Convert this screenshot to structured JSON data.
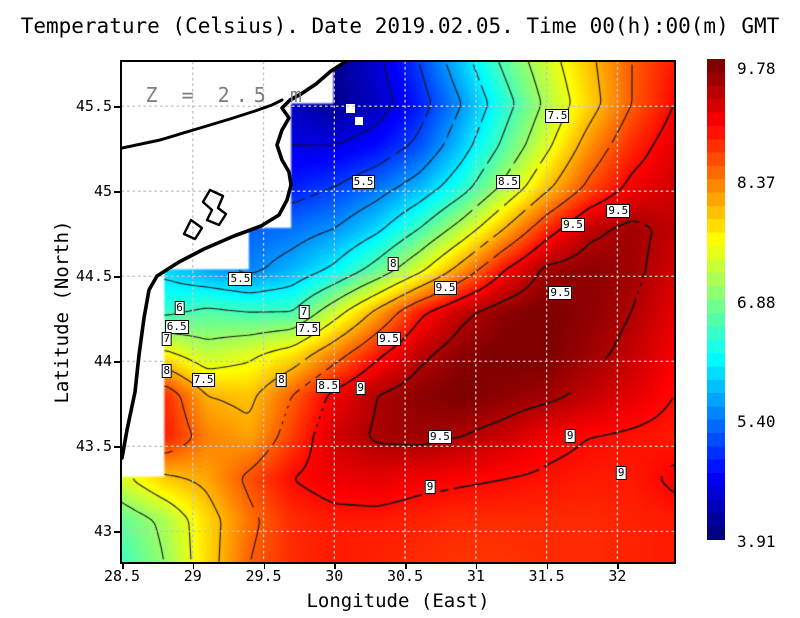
{
  "title": "Temperature (Celsius). Date 2019.02.05. Time 00(h):00(m) GMT",
  "annotation": "Z = 2.5 m",
  "axes": {
    "x_label": "Longitude (East)",
    "y_label": "Latitude (North)",
    "x_ticks": [
      "28.5",
      "29",
      "29.5",
      "30",
      "30.5",
      "31",
      "31.5",
      "32"
    ],
    "y_ticks": [
      "45.5",
      "45",
      "44.5",
      "44",
      "43.5",
      "43"
    ],
    "grid": true
  },
  "colorbar": {
    "labels": [
      "9.78",
      "8.37",
      "6.88",
      "5.40",
      "3.91"
    ],
    "min": 3.91,
    "max": 9.78
  },
  "chart_data": {
    "type": "heatmap",
    "title": "Temperature (Celsius). Date 2019.02.05. Time 00(h):00(m) GMT",
    "xlabel": "Longitude (East)",
    "ylabel": "Latitude (North)",
    "xlim": [
      28.5,
      32.4
    ],
    "ylim": [
      42.82,
      45.76
    ],
    "value_range": [
      3.91,
      9.78
    ],
    "lon": [
      28.5,
      28.8,
      29.1,
      29.4,
      29.7,
      30.0,
      30.3,
      30.6,
      30.9,
      31.2,
      31.5,
      31.8,
      32.1,
      32.4
    ],
    "lat": [
      45.76,
      45.52,
      45.27,
      45.03,
      44.78,
      44.54,
      44.29,
      44.05,
      43.8,
      43.56,
      43.31,
      43.07,
      42.82
    ],
    "values": [
      [
        null,
        null,
        null,
        null,
        null,
        4.0,
        4.4,
        5.0,
        5.8,
        6.6,
        7.3,
        7.9,
        8.5,
        8.9
      ],
      [
        null,
        null,
        null,
        null,
        4.3,
        4.0,
        4.3,
        4.8,
        5.5,
        6.3,
        7.1,
        7.8,
        8.5,
        9.0
      ],
      [
        null,
        null,
        null,
        null,
        4.5,
        4.5,
        4.7,
        5.1,
        5.8,
        6.6,
        7.4,
        8.2,
        8.8,
        9.2
      ],
      [
        null,
        null,
        null,
        null,
        4.8,
        5.0,
        5.3,
        5.7,
        6.3,
        7.1,
        7.9,
        8.6,
        9.1,
        9.3
      ],
      [
        null,
        null,
        null,
        5.2,
        5.3,
        5.5,
        5.9,
        6.5,
        7.2,
        8.0,
        8.8,
        9.4,
        9.6,
        9.4
      ],
      [
        null,
        5.9,
        5.6,
        5.4,
        5.7,
        6.1,
        6.7,
        7.4,
        8.2,
        9.0,
        9.6,
        9.7,
        9.6,
        9.3
      ],
      [
        null,
        6.4,
        6.6,
        6.5,
        6.5,
        7.3,
        8.1,
        8.9,
        9.4,
        9.7,
        9.8,
        9.7,
        9.5,
        9.2
      ],
      [
        null,
        7.6,
        7.2,
        7.4,
        7.7,
        8.3,
        8.9,
        9.4,
        9.7,
        9.8,
        9.8,
        9.6,
        9.4,
        9.1
      ],
      [
        null,
        8.8,
        8.0,
        7.9,
        8.5,
        9.1,
        9.5,
        9.7,
        9.8,
        9.7,
        9.6,
        9.4,
        9.2,
        9.0
      ],
      [
        null,
        8.9,
        8.3,
        8.1,
        8.7,
        9.3,
        9.55,
        9.6,
        9.5,
        9.35,
        9.1,
        9.0,
        8.95,
        8.9
      ],
      [
        7.4,
        7.9,
        8.1,
        8.6,
        9.0,
        9.15,
        9.2,
        9.1,
        9.05,
        9.0,
        8.95,
        8.9,
        8.9,
        9.05
      ],
      [
        6.7,
        7.1,
        7.8,
        8.4,
        8.8,
        8.9,
        8.9,
        8.85,
        8.8,
        8.8,
        8.8,
        8.8,
        8.85,
        8.9
      ],
      [
        6.5,
        7.0,
        7.8,
        8.5,
        8.8,
        8.9,
        8.85,
        8.8,
        8.75,
        8.75,
        8.8,
        8.8,
        8.85,
        8.9
      ]
    ],
    "contour_levels": [
      4,
      4.5,
      5,
      5.5,
      6,
      6.5,
      7,
      7.5,
      8,
      8.5,
      9,
      9.5
    ],
    "contour_labels": [
      {
        "v": "5.5",
        "lon": 30.21,
        "lat": 45.05
      },
      {
        "v": "8.5",
        "lon": 31.23,
        "lat": 45.05
      },
      {
        "v": "7.5",
        "lon": 31.58,
        "lat": 45.44
      },
      {
        "v": "9.5",
        "lon": 32.01,
        "lat": 44.88
      },
      {
        "v": "9.5",
        "lon": 31.69,
        "lat": 44.8
      },
      {
        "v": "5.5",
        "lon": 29.34,
        "lat": 44.48
      },
      {
        "v": "6",
        "lon": 28.91,
        "lat": 44.31
      },
      {
        "v": "6.5",
        "lon": 28.89,
        "lat": 44.2
      },
      {
        "v": "7",
        "lon": 28.82,
        "lat": 44.13
      },
      {
        "v": "7",
        "lon": 29.79,
        "lat": 44.29
      },
      {
        "v": "7.5",
        "lon": 29.82,
        "lat": 44.19
      },
      {
        "v": "8",
        "lon": 30.42,
        "lat": 44.57
      },
      {
        "v": "8",
        "lon": 28.82,
        "lat": 43.94
      },
      {
        "v": "7.5",
        "lon": 29.08,
        "lat": 43.89
      },
      {
        "v": "8",
        "lon": 29.63,
        "lat": 43.89
      },
      {
        "v": "8.5",
        "lon": 29.96,
        "lat": 43.85
      },
      {
        "v": "9",
        "lon": 30.19,
        "lat": 43.84
      },
      {
        "v": "9.5",
        "lon": 30.39,
        "lat": 44.13
      },
      {
        "v": "9.5",
        "lon": 30.79,
        "lat": 44.43
      },
      {
        "v": "9.5",
        "lon": 31.6,
        "lat": 44.4
      },
      {
        "v": "9.5",
        "lon": 30.75,
        "lat": 43.55
      },
      {
        "v": "9",
        "lon": 31.67,
        "lat": 43.56
      },
      {
        "v": "9",
        "lon": 30.68,
        "lat": 43.26
      },
      {
        "v": "9",
        "lon": 32.03,
        "lat": 43.34
      }
    ]
  }
}
